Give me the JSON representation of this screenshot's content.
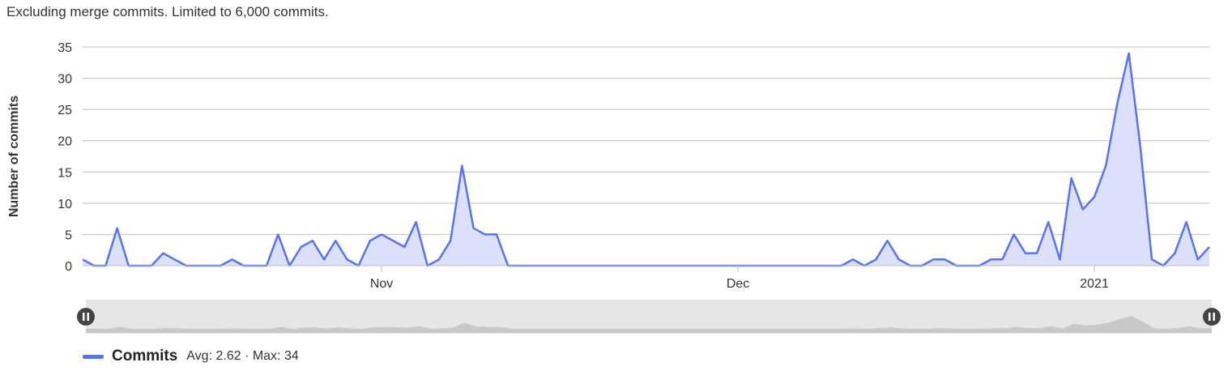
{
  "note": "Excluding merge commits. Limited to 6,000 commits.",
  "chart_data": {
    "type": "area",
    "ylabel": "Number of commits",
    "ylim": [
      0,
      35
    ],
    "yticks": [
      "0",
      "5",
      "10",
      "15",
      "20",
      "25",
      "30",
      "35"
    ],
    "xtick_labels": [
      {
        "label": "Nov",
        "index": 26
      },
      {
        "label": "Dec",
        "index": 57
      },
      {
        "label": "2021",
        "index": 88
      }
    ],
    "series": [
      {
        "name": "Commits",
        "color": "#5873f0",
        "fill": "#dce0fa",
        "values": [
          1,
          0,
          0,
          6,
          0,
          0,
          0,
          2,
          1,
          0,
          0,
          0,
          0,
          1,
          0,
          0,
          0,
          5,
          0,
          3,
          4,
          1,
          4,
          1,
          0,
          4,
          5,
          4,
          3,
          7,
          0,
          1,
          4,
          16,
          6,
          5,
          5,
          0,
          0,
          0,
          0,
          0,
          0,
          0,
          0,
          0,
          0,
          0,
          0,
          0,
          0,
          0,
          0,
          0,
          0,
          0,
          0,
          0,
          0,
          0,
          0,
          0,
          0,
          0,
          0,
          0,
          0,
          1,
          0,
          1,
          4,
          1,
          0,
          0,
          1,
          1,
          0,
          0,
          0,
          1,
          1,
          5,
          2,
          2,
          7,
          1,
          14,
          9,
          11,
          16,
          26,
          34,
          19,
          1,
          0,
          2,
          7,
          1,
          3
        ]
      }
    ],
    "legend": {
      "label": "Commits",
      "avg_text": "Avg: 2.62 · Max: 34"
    }
  },
  "navigator": {
    "left_handle_icon": "pause-icon",
    "right_handle_icon": "pause-icon",
    "color": "#cccccc"
  }
}
